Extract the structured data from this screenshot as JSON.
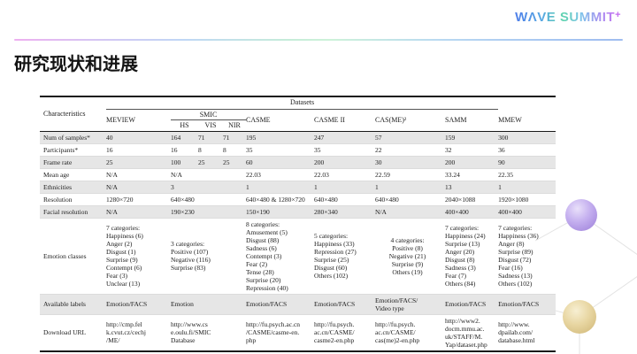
{
  "header": {
    "logo_text": "WΛVE SUMMIT",
    "logo_plus": "+",
    "title": "研究现状和进展"
  },
  "colors": {
    "logo_gradient": [
      "#4f7ee9",
      "#5ed3ae",
      "#c47af2"
    ],
    "divider_gradient": [
      "#eeaff0",
      "#bfd7f5",
      "#cdf2d9",
      "#9fbdf0"
    ],
    "row_shading": "#e6e6e6",
    "sphere_purple": "#b9a3e8",
    "sphere_yellow": "#e3cf96"
  },
  "table": {
    "datasets_label": "Datasets",
    "characteristics_label": "Characteristics",
    "columns": [
      "MEVIEW",
      "SMIC",
      "CASME",
      "CASME II",
      "CAS(ME)²",
      "SAMM",
      "MMEW"
    ],
    "smic_subcolumns": [
      "HS",
      "VIS",
      "NIR"
    ],
    "rows": [
      {
        "label": "Num of samples*",
        "shaded": true,
        "cells": [
          "40",
          [
            "164",
            "71",
            "71"
          ],
          "195",
          "247",
          "57",
          "159",
          "300"
        ]
      },
      {
        "label": "Participants*",
        "shaded": false,
        "cells": [
          "16",
          [
            "16",
            "8",
            "8"
          ],
          "35",
          "35",
          "22",
          "32",
          "36"
        ]
      },
      {
        "label": "Frame rate",
        "shaded": true,
        "cells": [
          "25",
          [
            "100",
            "25",
            "25"
          ],
          "60",
          "200",
          "30",
          "200",
          "90"
        ]
      },
      {
        "label": "Mean age",
        "shaded": false,
        "cells": [
          "N/A",
          "N/A",
          "22.03",
          "22.03",
          "22.59",
          "33.24",
          "22.35"
        ]
      },
      {
        "label": "Ethnicities",
        "shaded": true,
        "cells": [
          "N/A",
          "3",
          "1",
          "1",
          "1",
          "13",
          "1"
        ]
      },
      {
        "label": "Resolution",
        "shaded": false,
        "cells": [
          "1280×720",
          "640×480",
          "640×480 & 1280×720",
          "640×480",
          "640×480",
          "2040×1088",
          "1920×1080"
        ]
      },
      {
        "label": "Facial resolution",
        "shaded": true,
        "cells": [
          "N/A",
          "190×230",
          "150×190",
          "280×340",
          "N/A",
          "400×400",
          "400×400"
        ]
      },
      {
        "label": "Emotion classes",
        "shaded": false,
        "cells": [
          "7 categories:\nHappiness (6)\nAnger (2)\nDisgust (1)\nSurprise (9)\nContempt (6)\nFear (3)\nUnclear (13)",
          "3 categories:\nPositive (107)\nNegative (116)\nSurprise (83)",
          "8 categories:\nAmusement (5)\nDisgust (88)\nSadness (6)\nContempt (3)\nFear (2)\nTense (28)\nSurprise (20)\nRepression (40)",
          "5 categories:\nHappiness (33)\nRepression (27)\nSurprise (25)\nDisgust (60)\nOthers (102)",
          "4 categories:\nPositive (8)\nNegative (21)\nSurprise (9)\nOthers (19)",
          "7 categories:\nHappiness (24)\nSurprise (13)\nAnger (20)\nDisgust (8)\nSadness (3)\nFear (7)\nOthers (84)",
          "7 categories:\nHappiness (36)\nAnger (8)\nSurprise (89)\nDisgust (72)\nFear (16)\nSadness (13)\nOthers (102)"
        ]
      },
      {
        "label": "Available labels",
        "shaded": true,
        "cells": [
          "Emotion/FACS",
          "Emotion",
          "Emotion/FACS",
          "Emotion/FACS",
          "Emotion/FACS/\nVideo type",
          "Emotion/FACS",
          "Emotion/FACS"
        ]
      },
      {
        "label": "Download URL",
        "shaded": false,
        "cells": [
          "http://cmp.fel\nk.cvut.cz/cechj\n/ME/",
          "http://www.cs\ne.oulu.fi/SMIC\nDatabase",
          "http://fu.psych.ac.cn\n/CASME/casme-en.\nphp",
          "http://fu.psych.\nac.cn/CASME/\ncasme2-en.php",
          "http://fu.psych.\nac.cn/CASME/\ncas(me)2-en.php",
          "http://www2.\ndocm.mmu.ac.\nuk/STAFF/M.\nYap/dataset.php",
          "http://www.\ndpailab.com/\ndatabase.html"
        ]
      }
    ]
  }
}
